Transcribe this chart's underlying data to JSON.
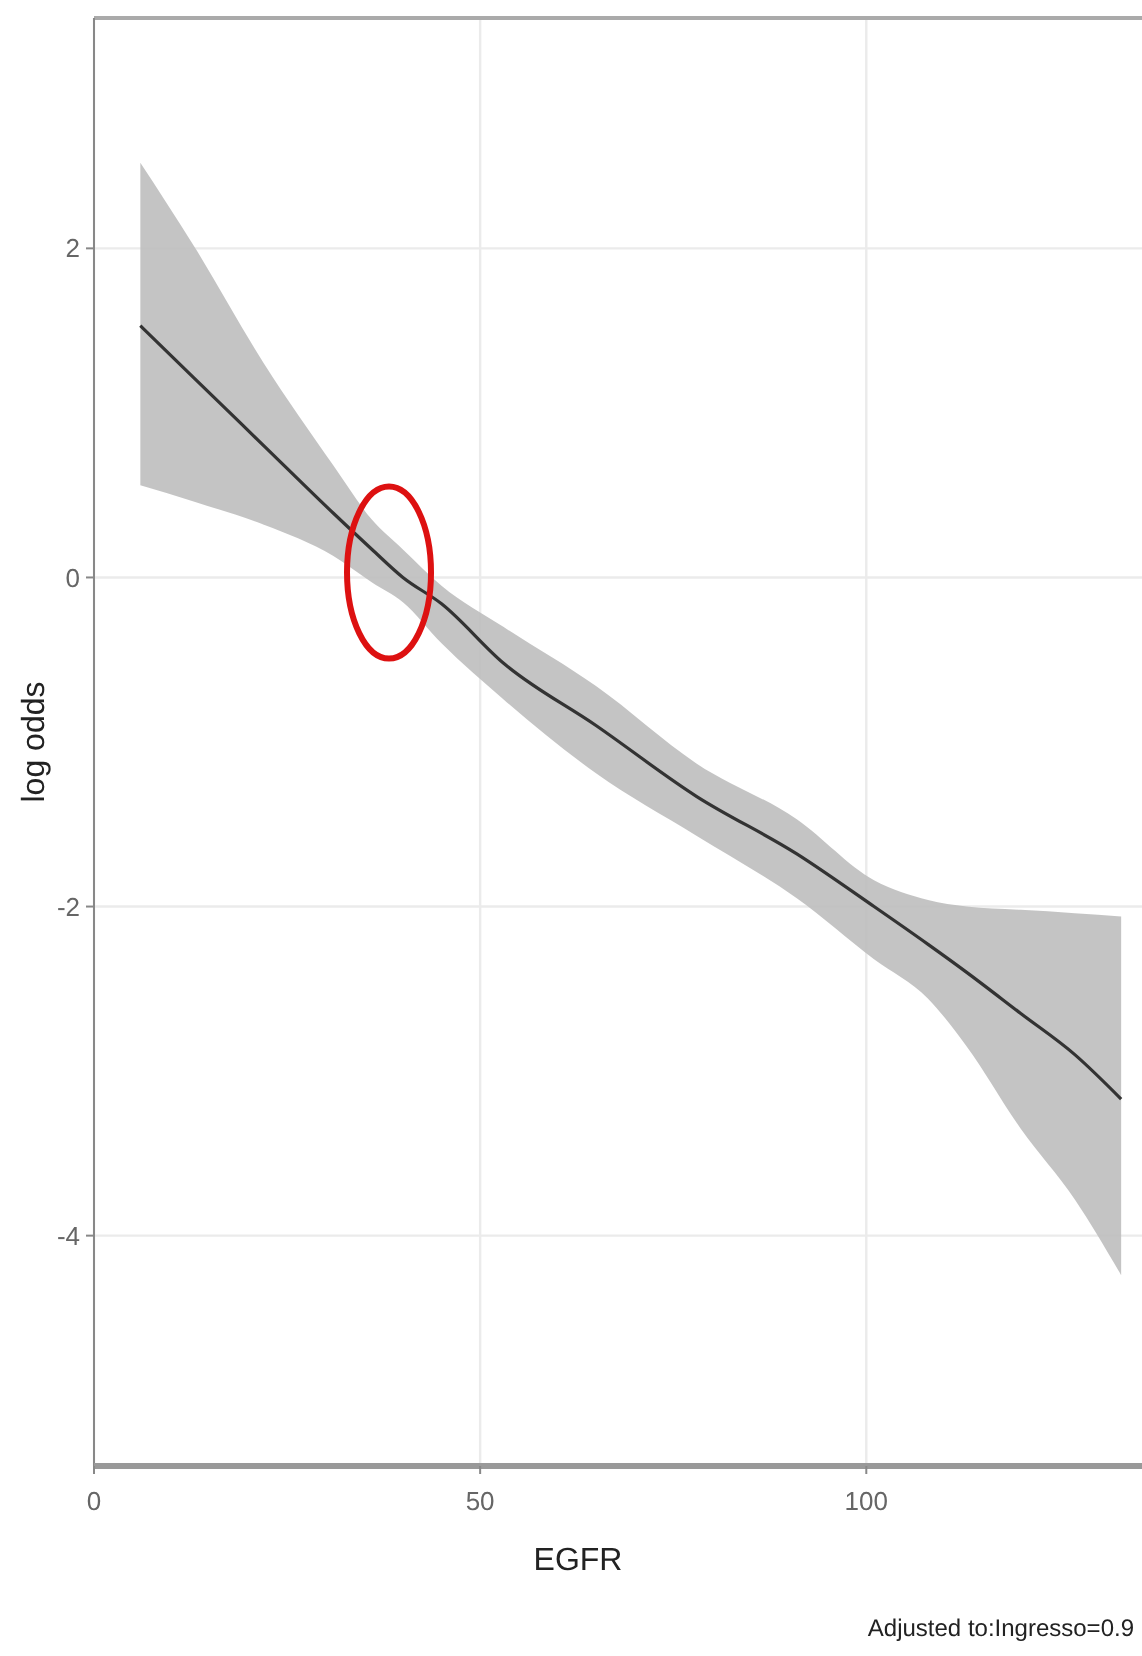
{
  "chart_data": {
    "type": "line",
    "xlabel": "EGFR",
    "ylabel": "log odds",
    "annotations": [
      "Adjusted to:Ingresso=0.9"
    ],
    "xlim": [
      0,
      135.7
    ],
    "ylim": [
      -5.4,
      3.4
    ],
    "xticks": [
      0,
      50,
      100
    ],
    "yticks": [
      -4,
      -2,
      0,
      2
    ],
    "grid": true,
    "marker": "none",
    "line_style": "solid",
    "x": [
      6,
      13,
      22,
      31,
      36,
      40,
      45,
      53,
      65,
      78,
      91,
      101,
      108,
      113,
      120,
      127,
      133
    ],
    "series": [
      {
        "color": "#333333",
        "values": [
          1.53,
          1.21,
          0.8,
          0.39,
          0.17,
          0.0,
          -0.16,
          -0.52,
          -0.9,
          -1.33,
          -1.68,
          -2.0,
          -2.23,
          -2.4,
          -2.65,
          -2.9,
          -3.17
        ],
        "upper": [
          2.52,
          2.01,
          1.3,
          0.68,
          0.35,
          0.17,
          -0.05,
          -0.3,
          -0.66,
          -1.13,
          -1.47,
          -1.84,
          -1.96,
          -2.0,
          -2.02,
          -2.04,
          -2.06
        ],
        "lower": [
          0.56,
          0.46,
          0.32,
          0.13,
          -0.03,
          -0.15,
          -0.4,
          -0.74,
          -1.19,
          -1.57,
          -1.95,
          -2.32,
          -2.56,
          -2.85,
          -3.35,
          -3.78,
          -4.24
        ]
      }
    ]
  }
}
